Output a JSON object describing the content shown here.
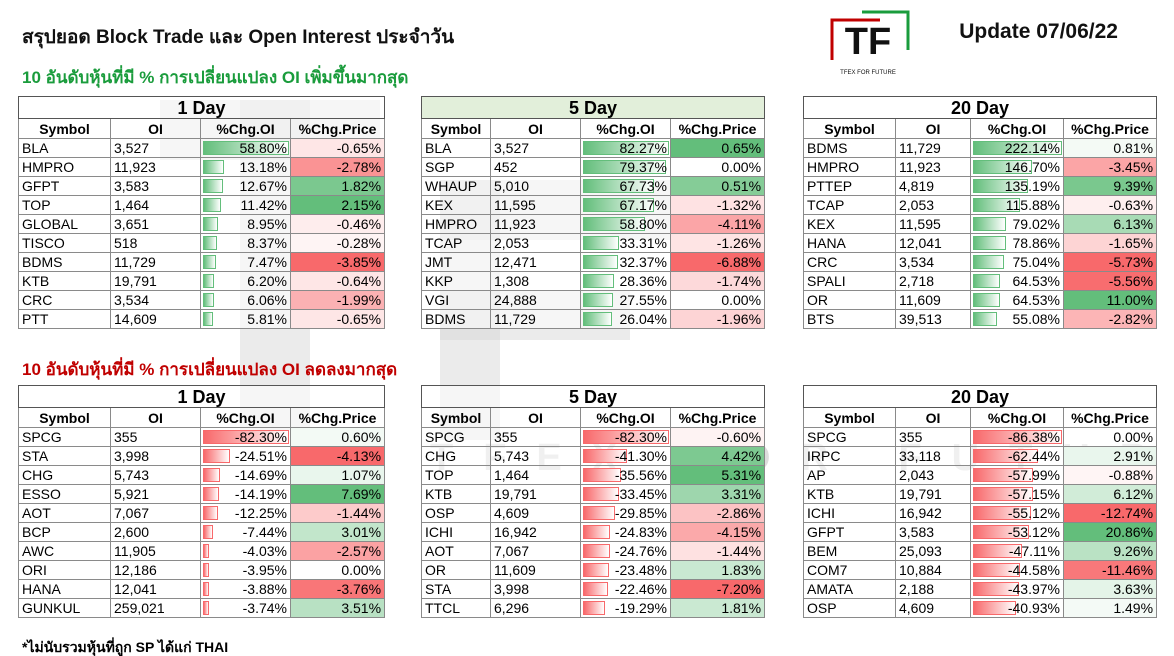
{
  "header": {
    "title": "สรุปยอด Block Trade และ Open Interest ประจำวัน",
    "update": "Update 07/06/22",
    "logo": {
      "mark": "TF",
      "tagline": "TFEX FOR FUTURE"
    }
  },
  "columns": [
    "Symbol",
    "OI",
    "%Chg.OI",
    "%Chg.Price"
  ],
  "sections": [
    {
      "heading": "10 อันดับหุ้นที่มี % การเปลี่ยนแปลง OI เพิ่มขึ้นมากสุด",
      "tables": [
        {
          "period": "1 Day",
          "rows": [
            [
              "BLA",
              "3,527",
              "58.80%",
              "-0.65%"
            ],
            [
              "HMPRO",
              "11,923",
              "13.18%",
              "-2.78%"
            ],
            [
              "GFPT",
              "3,583",
              "12.67%",
              "1.82%"
            ],
            [
              "TOP",
              "1,464",
              "11.42%",
              "2.15%"
            ],
            [
              "GLOBAL",
              "3,651",
              "8.95%",
              "-0.46%"
            ],
            [
              "TISCO",
              "518",
              "8.37%",
              "-0.28%"
            ],
            [
              "BDMS",
              "11,729",
              "7.47%",
              "-3.85%"
            ],
            [
              "KTB",
              "19,791",
              "6.20%",
              "-0.64%"
            ],
            [
              "CRC",
              "3,534",
              "6.06%",
              "-1.99%"
            ],
            [
              "PTT",
              "14,609",
              "5.81%",
              "-0.65%"
            ]
          ]
        },
        {
          "period": "5 Day",
          "rows": [
            [
              "BLA",
              "3,527",
              "82.27%",
              "0.65%"
            ],
            [
              "SGP",
              "452",
              "79.37%",
              "0.00%"
            ],
            [
              "WHAUP",
              "5,010",
              "67.73%",
              "0.51%"
            ],
            [
              "KEX",
              "11,595",
              "67.17%",
              "-1.32%"
            ],
            [
              "HMPRO",
              "11,923",
              "58.80%",
              "-4.11%"
            ],
            [
              "TCAP",
              "2,053",
              "33.31%",
              "-1.26%"
            ],
            [
              "JMT",
              "12,471",
              "32.37%",
              "-6.88%"
            ],
            [
              "KKP",
              "1,308",
              "28.36%",
              "-1.74%"
            ],
            [
              "VGI",
              "24,888",
              "27.55%",
              "0.00%"
            ],
            [
              "BDMS",
              "11,729",
              "26.04%",
              "-1.96%"
            ]
          ]
        },
        {
          "period": "20 Day",
          "rows": [
            [
              "BDMS",
              "11,729",
              "222.14%",
              "0.81%"
            ],
            [
              "HMPRO",
              "11,923",
              "146.70%",
              "-3.45%"
            ],
            [
              "PTTEP",
              "4,819",
              "135.19%",
              "9.39%"
            ],
            [
              "TCAP",
              "2,053",
              "115.88%",
              "-0.63%"
            ],
            [
              "KEX",
              "11,595",
              "79.02%",
              "6.13%"
            ],
            [
              "HANA",
              "12,041",
              "78.86%",
              "-1.65%"
            ],
            [
              "CRC",
              "3,534",
              "75.04%",
              "-5.73%"
            ],
            [
              "SPALI",
              "2,718",
              "64.53%",
              "-5.56%"
            ],
            [
              "OR",
              "11,609",
              "64.53%",
              "11.00%"
            ],
            [
              "BTS",
              "39,513",
              "55.08%",
              "-2.82%"
            ]
          ]
        }
      ]
    },
    {
      "heading": "10 อันดับหุ้นที่มี % การเปลี่ยนแปลง OI ลดลงมากสุด",
      "tables": [
        {
          "period": "1 Day",
          "rows": [
            [
              "SPCG",
              "355",
              "-82.30%",
              "0.60%"
            ],
            [
              "STA",
              "3,998",
              "-24.51%",
              "-4.13%"
            ],
            [
              "CHG",
              "5,743",
              "-14.69%",
              "1.07%"
            ],
            [
              "ESSO",
              "5,921",
              "-14.19%",
              "7.69%"
            ],
            [
              "AOT",
              "7,067",
              "-12.25%",
              "-1.44%"
            ],
            [
              "BCP",
              "2,600",
              "-7.44%",
              "3.01%"
            ],
            [
              "AWC",
              "11,905",
              "-4.03%",
              "-2.57%"
            ],
            [
              "ORI",
              "12,186",
              "-3.95%",
              "0.00%"
            ],
            [
              "HANA",
              "12,041",
              "-3.88%",
              "-3.76%"
            ],
            [
              "GUNKUL",
              "259,021",
              "-3.74%",
              "3.51%"
            ]
          ]
        },
        {
          "period": "5 Day",
          "rows": [
            [
              "SPCG",
              "355",
              "-82.30%",
              "-0.60%"
            ],
            [
              "CHG",
              "5,743",
              "-41.30%",
              "4.42%"
            ],
            [
              "TOP",
              "1,464",
              "-35.56%",
              "5.31%"
            ],
            [
              "KTB",
              "19,791",
              "-33.45%",
              "3.31%"
            ],
            [
              "OSP",
              "4,609",
              "-29.85%",
              "-2.86%"
            ],
            [
              "ICHI",
              "16,942",
              "-24.83%",
              "-4.15%"
            ],
            [
              "AOT",
              "7,067",
              "-24.76%",
              "-1.44%"
            ],
            [
              "OR",
              "11,609",
              "-23.48%",
              "1.83%"
            ],
            [
              "STA",
              "3,998",
              "-22.46%",
              "-7.20%"
            ],
            [
              "TTCL",
              "6,296",
              "-19.29%",
              "1.81%"
            ]
          ]
        },
        {
          "period": "20 Day",
          "rows": [
            [
              "SPCG",
              "355",
              "-86.38%",
              "0.00%"
            ],
            [
              "IRPC",
              "33,118",
              "-62.44%",
              "2.91%"
            ],
            [
              "AP",
              "2,043",
              "-57.99%",
              "-0.88%"
            ],
            [
              "KTB",
              "19,791",
              "-57.15%",
              "6.12%"
            ],
            [
              "ICHI",
              "16,942",
              "-55.12%",
              "-12.74%"
            ],
            [
              "GFPT",
              "3,583",
              "-53.12%",
              "20.86%"
            ],
            [
              "BEM",
              "25,093",
              "-47.11%",
              "9.26%"
            ],
            [
              "COM7",
              "10,884",
              "-44.58%",
              "-11.46%"
            ],
            [
              "AMATA",
              "2,188",
              "-43.97%",
              "3.63%"
            ],
            [
              "OSP",
              "4,609",
              "-40.93%",
              "1.49%"
            ]
          ]
        }
      ]
    }
  ],
  "footnote": "*ไม่นับรวมหุ้นที่ถูก SP ได้แก่ THAI"
}
